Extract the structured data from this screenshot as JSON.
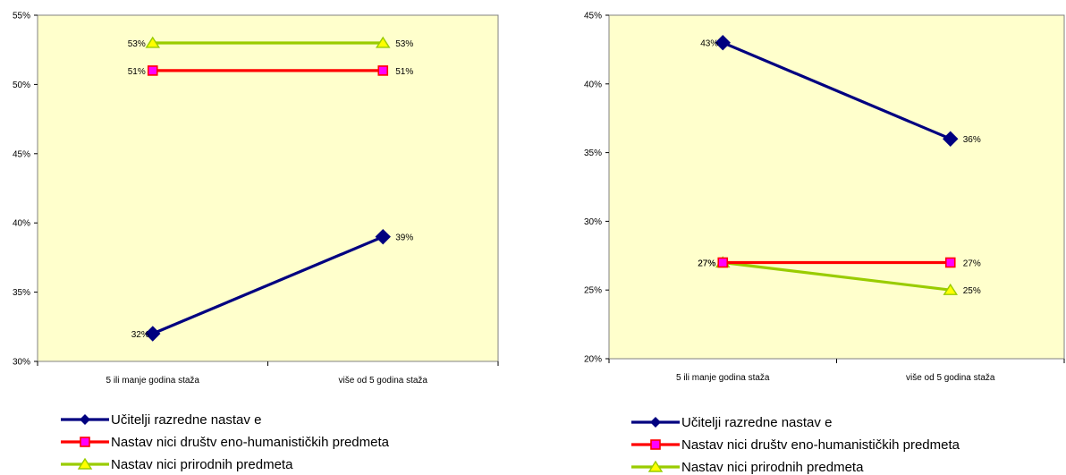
{
  "chart_data": [
    {
      "type": "line",
      "categories": [
        "5 ili manje godina staža",
        "više od 5 godina staža"
      ],
      "ylim": [
        30,
        55
      ],
      "yticks": [
        30,
        35,
        40,
        45,
        50,
        55
      ],
      "y_unit": "%",
      "grid": false,
      "legend_position": "bottom",
      "series": [
        {
          "name": "Učitelji razredne nastav e",
          "values": [
            32,
            39
          ],
          "color": "#000080",
          "marker": "diamond"
        },
        {
          "name": "Nastav nici društv eno-humanističkih predmeta",
          "values": [
            51,
            51
          ],
          "color": "#ff0000",
          "marker": "square"
        },
        {
          "name": "Nastav nici prirodnih predmeta",
          "values": [
            53,
            53
          ],
          "color": "#99cc00",
          "marker": "triangle"
        }
      ]
    },
    {
      "type": "line",
      "categories": [
        "5 ili manje godina staža",
        "više od 5 godina staža"
      ],
      "ylim": [
        20,
        45
      ],
      "yticks": [
        20,
        25,
        30,
        35,
        40,
        45
      ],
      "y_unit": "%",
      "grid": false,
      "legend_position": "bottom",
      "series": [
        {
          "name": "Učitelji razredne nastav e",
          "values": [
            43,
            36
          ],
          "color": "#000080",
          "marker": "diamond"
        },
        {
          "name": "Nastav nici društv eno-humanističkih predmeta",
          "values": [
            27,
            27
          ],
          "color": "#ff0000",
          "marker": "square"
        },
        {
          "name": "Nastav nici prirodnih predmeta",
          "values": [
            27,
            25
          ],
          "color": "#99cc00",
          "marker": "triangle"
        }
      ]
    }
  ],
  "style": {
    "plot_background": "#ffffcc",
    "axis_color": "#808080",
    "marker_pink": "#ff00ff",
    "marker_yellow": "#ffff00"
  }
}
